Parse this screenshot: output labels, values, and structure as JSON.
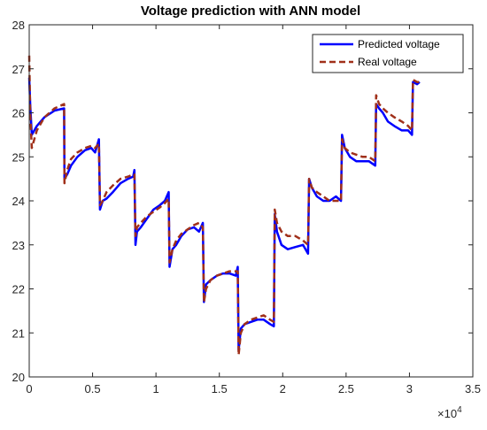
{
  "chart_data": {
    "type": "line",
    "title": "Voltage prediction with  ANN model",
    "xlabel": "",
    "ylabel": "",
    "xlim": [
      0,
      35000
    ],
    "ylim": [
      20,
      28
    ],
    "x_ticks": [
      0,
      5000,
      10000,
      15000,
      20000,
      25000,
      30000,
      35000
    ],
    "x_tick_labels": [
      "0",
      "0.5",
      "1",
      "1.5",
      "2",
      "2.5",
      "3",
      "3.5"
    ],
    "x_exponent_label": "×10^4",
    "y_ticks": [
      20,
      21,
      22,
      23,
      24,
      25,
      26,
      27,
      28
    ],
    "y_tick_labels": [
      "20",
      "21",
      "22",
      "23",
      "24",
      "25",
      "26",
      "27",
      "28"
    ],
    "grid": false,
    "legend_position": "top-right",
    "series": [
      {
        "name": "Predicted voltage",
        "color": "#0000ff",
        "style": "solid",
        "points": [
          [
            0,
            26.8
          ],
          [
            80,
            26.2
          ],
          [
            200,
            25.5
          ],
          [
            600,
            25.7
          ],
          [
            1200,
            25.9
          ],
          [
            2000,
            26.05
          ],
          [
            2750,
            26.1
          ],
          [
            2780,
            24.5
          ],
          [
            3000,
            24.6
          ],
          [
            3300,
            24.8
          ],
          [
            3800,
            25.0
          ],
          [
            4400,
            25.15
          ],
          [
            4900,
            25.2
          ],
          [
            5200,
            25.1
          ],
          [
            5500,
            25.4
          ],
          [
            5580,
            23.8
          ],
          [
            5800,
            24.0
          ],
          [
            6100,
            24.05
          ],
          [
            6600,
            24.2
          ],
          [
            7200,
            24.4
          ],
          [
            7800,
            24.5
          ],
          [
            8200,
            24.55
          ],
          [
            8300,
            24.7
          ],
          [
            8380,
            23.0
          ],
          [
            8500,
            23.3
          ],
          [
            8800,
            23.4
          ],
          [
            9300,
            23.6
          ],
          [
            9800,
            23.8
          ],
          [
            10300,
            23.9
          ],
          [
            10700,
            24.0
          ],
          [
            11000,
            24.2
          ],
          [
            11070,
            22.5
          ],
          [
            11300,
            22.9
          ],
          [
            11600,
            23.0
          ],
          [
            12000,
            23.2
          ],
          [
            12500,
            23.35
          ],
          [
            13000,
            23.4
          ],
          [
            13400,
            23.3
          ],
          [
            13700,
            23.5
          ],
          [
            13780,
            21.7
          ],
          [
            13950,
            22.1
          ],
          [
            14300,
            22.2
          ],
          [
            14800,
            22.3
          ],
          [
            15300,
            22.35
          ],
          [
            15800,
            22.35
          ],
          [
            16300,
            22.3
          ],
          [
            16450,
            22.5
          ],
          [
            16520,
            20.6
          ],
          [
            16700,
            21.1
          ],
          [
            17000,
            21.2
          ],
          [
            17500,
            21.25
          ],
          [
            18000,
            21.3
          ],
          [
            18500,
            21.3
          ],
          [
            19000,
            21.2
          ],
          [
            19300,
            21.15
          ],
          [
            19370,
            23.7
          ],
          [
            19550,
            23.3
          ],
          [
            19900,
            23.0
          ],
          [
            20400,
            22.9
          ],
          [
            21000,
            22.95
          ],
          [
            21600,
            23.0
          ],
          [
            22000,
            22.8
          ],
          [
            22080,
            24.5
          ],
          [
            22300,
            24.3
          ],
          [
            22700,
            24.1
          ],
          [
            23200,
            24.0
          ],
          [
            23700,
            24.0
          ],
          [
            24200,
            24.1
          ],
          [
            24600,
            24.0
          ],
          [
            24680,
            25.5
          ],
          [
            24900,
            25.2
          ],
          [
            25300,
            25.0
          ],
          [
            25800,
            24.9
          ],
          [
            26300,
            24.9
          ],
          [
            26800,
            24.9
          ],
          [
            27300,
            24.8
          ],
          [
            27370,
            26.2
          ],
          [
            27600,
            26.1
          ],
          [
            27900,
            26.0
          ],
          [
            28300,
            25.8
          ],
          [
            28800,
            25.7
          ],
          [
            29400,
            25.6
          ],
          [
            29900,
            25.6
          ],
          [
            30200,
            25.5
          ],
          [
            30280,
            26.7
          ],
          [
            30600,
            26.65
          ],
          [
            30800,
            26.7
          ]
        ]
      },
      {
        "name": "Real voltage",
        "color": "#a0301a",
        "style": "dashed",
        "points": [
          [
            0,
            27.3
          ],
          [
            80,
            26.0
          ],
          [
            200,
            25.2
          ],
          [
            600,
            25.6
          ],
          [
            1200,
            25.9
          ],
          [
            2000,
            26.1
          ],
          [
            2750,
            26.2
          ],
          [
            2780,
            24.4
          ],
          [
            3000,
            24.7
          ],
          [
            3300,
            24.95
          ],
          [
            3800,
            25.1
          ],
          [
            4400,
            25.2
          ],
          [
            4900,
            25.25
          ],
          [
            5200,
            25.2
          ],
          [
            5500,
            25.3
          ],
          [
            5580,
            23.9
          ],
          [
            5800,
            24.0
          ],
          [
            6100,
            24.2
          ],
          [
            6600,
            24.35
          ],
          [
            7200,
            24.5
          ],
          [
            7800,
            24.55
          ],
          [
            8200,
            24.6
          ],
          [
            8300,
            24.6
          ],
          [
            8380,
            23.2
          ],
          [
            8500,
            23.4
          ],
          [
            8800,
            23.5
          ],
          [
            9300,
            23.65
          ],
          [
            9800,
            23.75
          ],
          [
            10300,
            23.85
          ],
          [
            10700,
            23.95
          ],
          [
            11000,
            24.05
          ],
          [
            11070,
            22.6
          ],
          [
            11300,
            22.9
          ],
          [
            11600,
            23.1
          ],
          [
            12000,
            23.25
          ],
          [
            12500,
            23.35
          ],
          [
            13000,
            23.45
          ],
          [
            13400,
            23.5
          ],
          [
            13700,
            23.4
          ],
          [
            13780,
            21.7
          ],
          [
            13950,
            22.0
          ],
          [
            14300,
            22.2
          ],
          [
            14800,
            22.3
          ],
          [
            15300,
            22.35
          ],
          [
            15800,
            22.4
          ],
          [
            16300,
            22.4
          ],
          [
            16450,
            22.4
          ],
          [
            16520,
            20.5
          ],
          [
            16700,
            21.0
          ],
          [
            17000,
            21.2
          ],
          [
            17500,
            21.3
          ],
          [
            18000,
            21.35
          ],
          [
            18500,
            21.4
          ],
          [
            19000,
            21.3
          ],
          [
            19300,
            21.25
          ],
          [
            19370,
            23.8
          ],
          [
            19550,
            23.5
          ],
          [
            19900,
            23.3
          ],
          [
            20400,
            23.2
          ],
          [
            21000,
            23.2
          ],
          [
            21600,
            23.1
          ],
          [
            22000,
            23.0
          ],
          [
            22080,
            24.5
          ],
          [
            22300,
            24.3
          ],
          [
            22700,
            24.2
          ],
          [
            23200,
            24.1
          ],
          [
            23700,
            24.0
          ],
          [
            24200,
            24.0
          ],
          [
            24600,
            24.0
          ],
          [
            24680,
            25.4
          ],
          [
            24900,
            25.2
          ],
          [
            25300,
            25.1
          ],
          [
            25800,
            25.05
          ],
          [
            26300,
            25.0
          ],
          [
            26800,
            25.0
          ],
          [
            27300,
            24.9
          ],
          [
            27370,
            26.4
          ],
          [
            27600,
            26.2
          ],
          [
            27900,
            26.1
          ],
          [
            28300,
            26.0
          ],
          [
            28800,
            25.9
          ],
          [
            29400,
            25.8
          ],
          [
            29900,
            25.7
          ],
          [
            30200,
            25.6
          ],
          [
            30280,
            26.75
          ],
          [
            30600,
            26.7
          ],
          [
            30800,
            26.7
          ]
        ]
      }
    ]
  }
}
